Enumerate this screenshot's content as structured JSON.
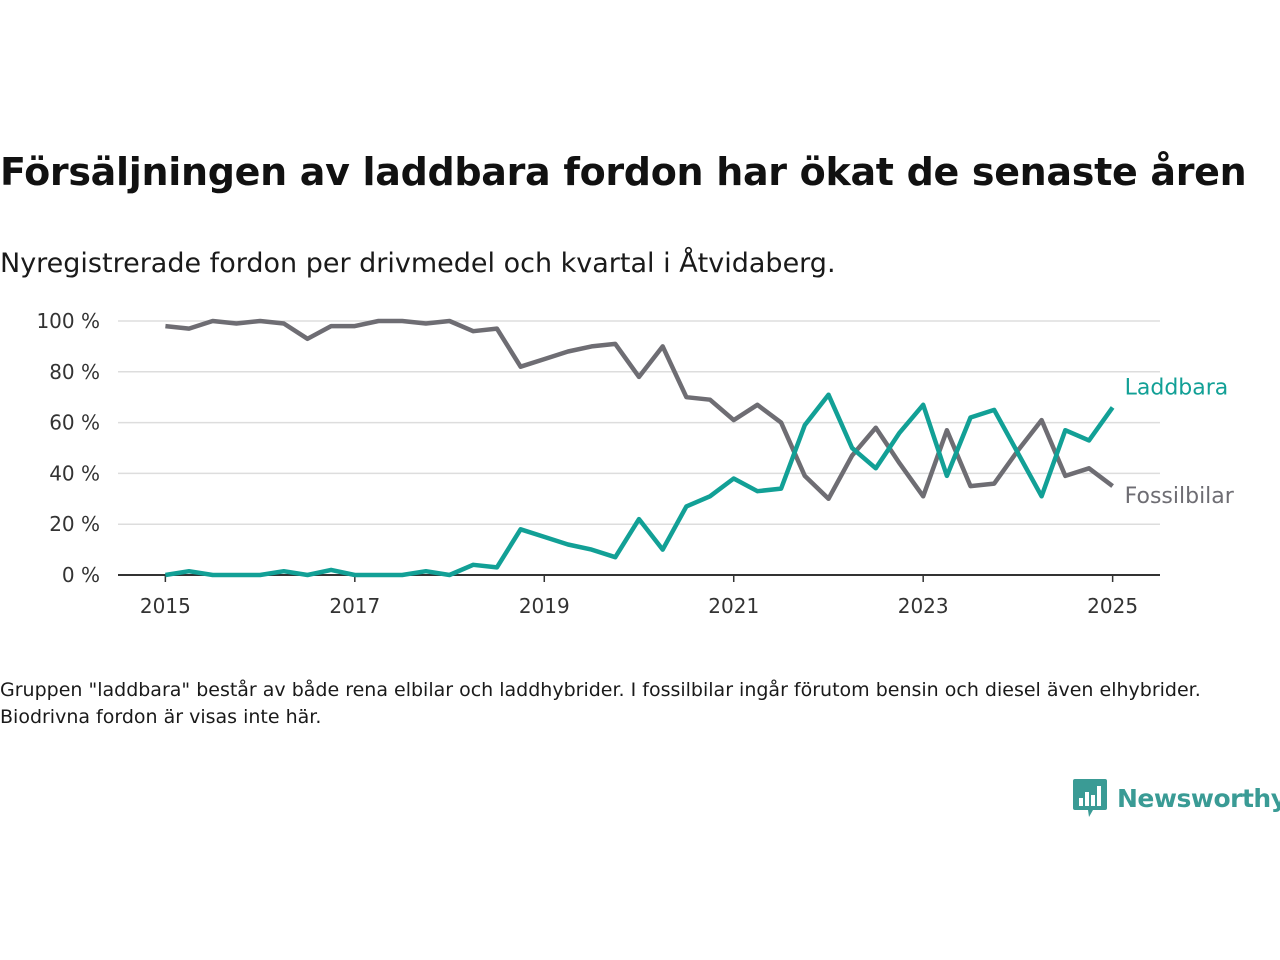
{
  "title": "Försäljningen av laddbara fordon har ökat de senaste åren",
  "subtitle": "Nyregistrerade fordon per drivmedel och kvartal i Åtvidaberg.",
  "note": "Gruppen \"laddbara\" består av både rena elbilar och laddhybrider. I fossilbilar ingår förutom bensin och diesel även elhybrider. Biodrivna fordon är visas inte här.",
  "brand": {
    "name": "Newsworthy",
    "icon": "newsworthy-logo-icon",
    "color": "#3a9b95"
  },
  "chart_data": {
    "type": "line",
    "title": "",
    "xlabel": "",
    "ylabel": "",
    "x": [
      2015.0,
      2015.25,
      2015.5,
      2015.75,
      2016.0,
      2016.25,
      2016.5,
      2016.75,
      2017.0,
      2017.25,
      2017.5,
      2017.75,
      2018.0,
      2018.25,
      2018.5,
      2018.75,
      2019.0,
      2019.25,
      2019.5,
      2019.75,
      2020.0,
      2020.25,
      2020.5,
      2020.75,
      2021.0,
      2021.25,
      2021.5,
      2021.75,
      2022.0,
      2022.25,
      2022.5,
      2022.75,
      2023.0,
      2023.25,
      2023.5,
      2023.75,
      2024.0,
      2024.25,
      2024.5,
      2024.75,
      2025.0
    ],
    "xlim": [
      2014.5,
      2025.5
    ],
    "ylim": [
      0,
      100
    ],
    "xticks": [
      2015,
      2017,
      2019,
      2021,
      2023,
      2025
    ],
    "xtick_labels": [
      "2015",
      "2017",
      "2019",
      "2021",
      "2023",
      "2025"
    ],
    "yticks": [
      0,
      20,
      40,
      60,
      80,
      100
    ],
    "ytick_labels": [
      "0 %",
      "20 %",
      "40 %",
      "60 %",
      "80 %",
      "100 %"
    ],
    "grid": true,
    "legend": "inline-right",
    "series": [
      {
        "name": "Laddbara",
        "color": "#12a096",
        "values": [
          0,
          1.5,
          0,
          0,
          0,
          1.5,
          0,
          2,
          0,
          0,
          0,
          1.5,
          0,
          4,
          3,
          18,
          15,
          12,
          10,
          7,
          22,
          10,
          27,
          31,
          38,
          33,
          34,
          59,
          71,
          50,
          42,
          56,
          67,
          39,
          62,
          65,
          48,
          31,
          57,
          53,
          66
        ]
      },
      {
        "name": "Fossilbilar",
        "color": "#6e6d73",
        "values": [
          98,
          97,
          100,
          99,
          100,
          99,
          93,
          98,
          98,
          100,
          100,
          99,
          100,
          96,
          97,
          82,
          85,
          88,
          90,
          91,
          78,
          90,
          70,
          69,
          61,
          67,
          60,
          39,
          30,
          47,
          58,
          44,
          31,
          57,
          35,
          36,
          49,
          61,
          39,
          42,
          35
        ]
      }
    ]
  }
}
